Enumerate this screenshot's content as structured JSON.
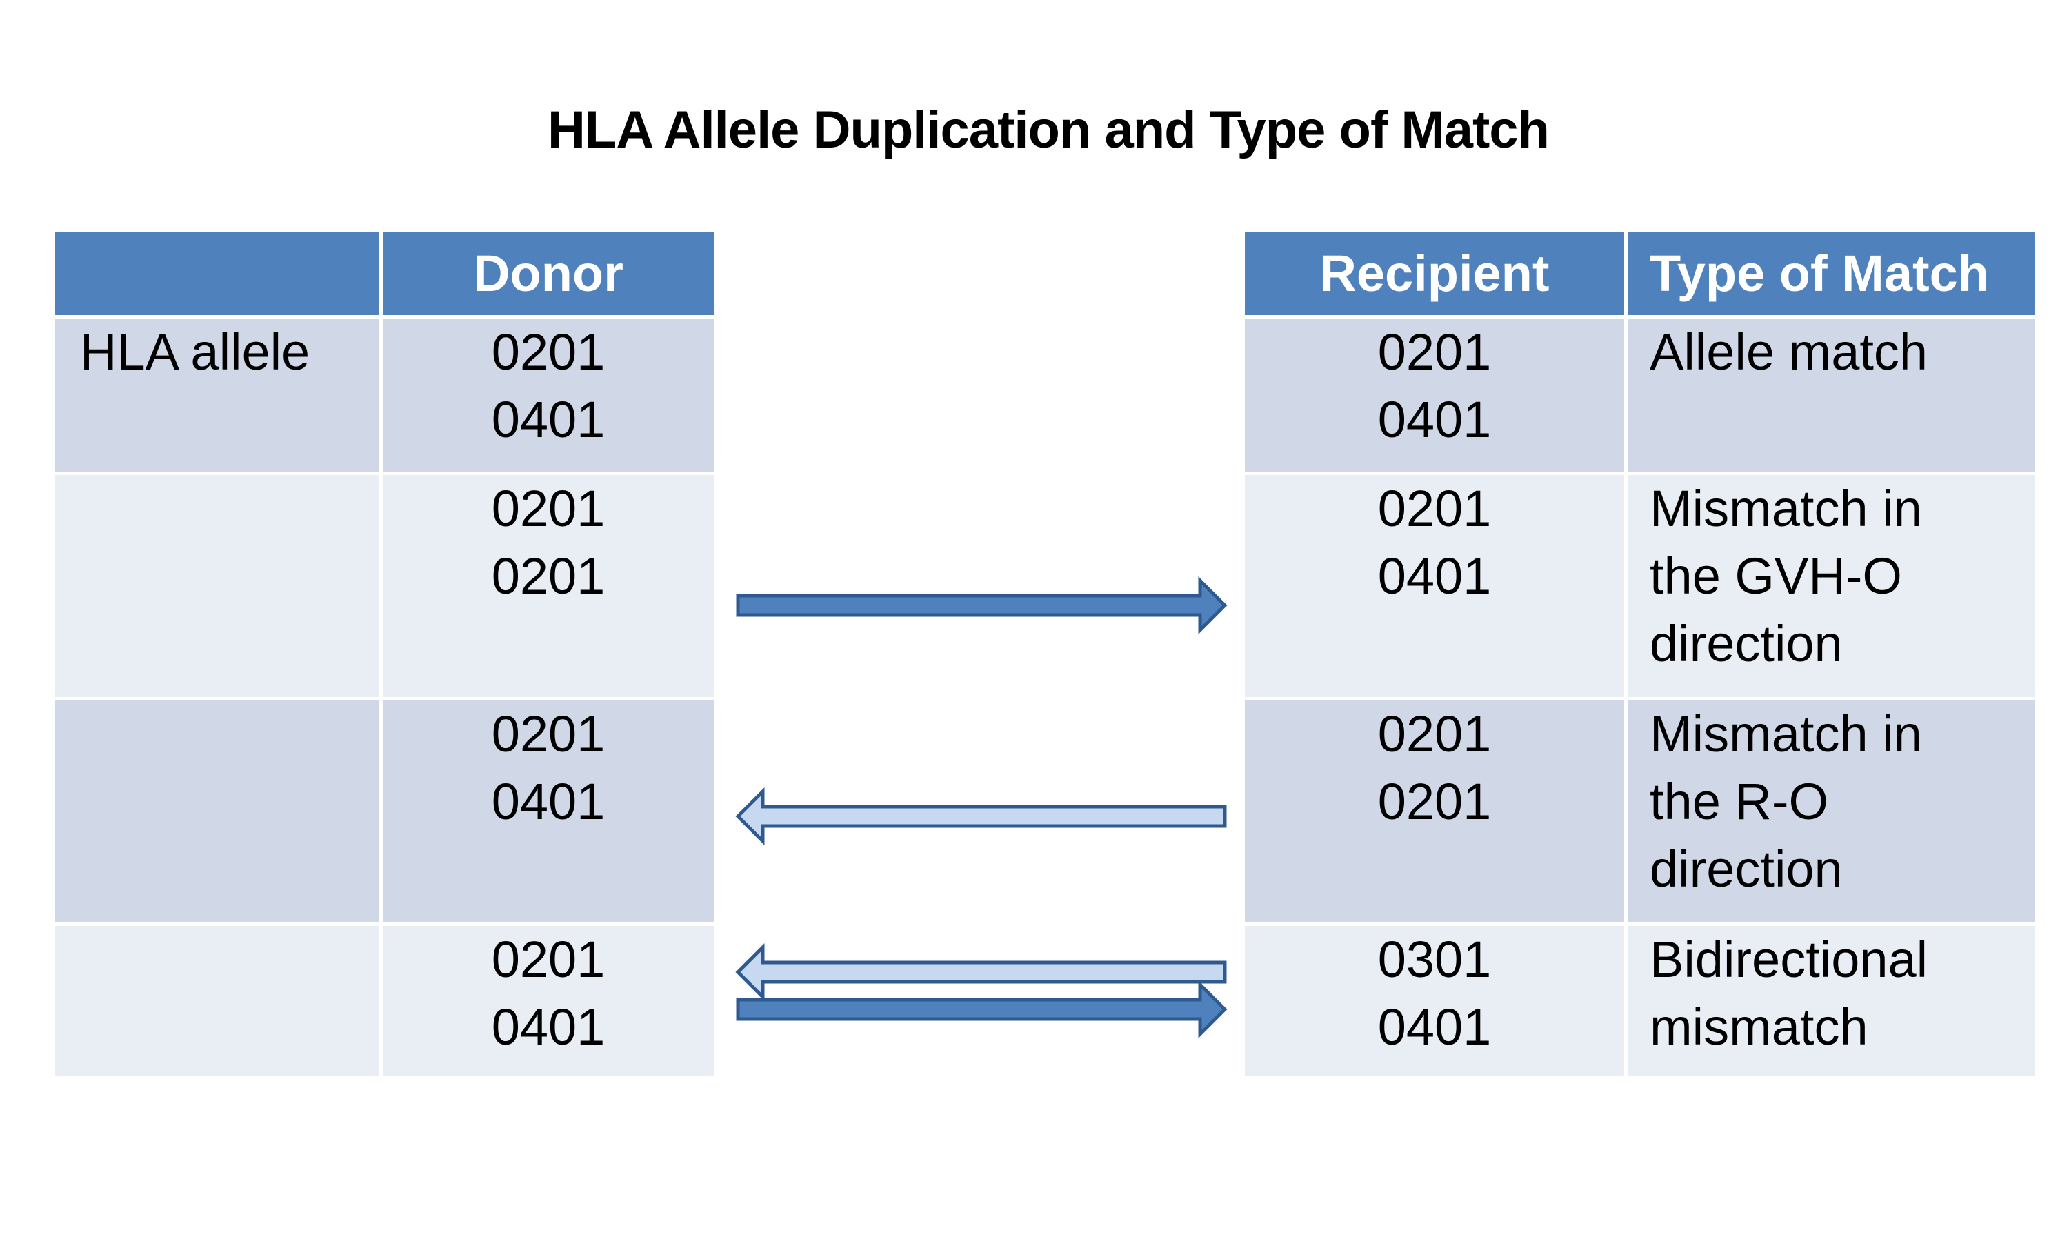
{
  "title": "HLA Allele Duplication and Type of Match",
  "left_table": {
    "headers": [
      "",
      "Donor"
    ],
    "rows": [
      {
        "label": "HLA allele",
        "donor": [
          "0201",
          "0401"
        ]
      },
      {
        "label": "",
        "donor": [
          "0201",
          "0201"
        ]
      },
      {
        "label": "",
        "donor": [
          "0201",
          "0401"
        ]
      },
      {
        "label": "",
        "donor": [
          "0201",
          "0401"
        ]
      }
    ]
  },
  "right_table": {
    "headers": [
      "Recipient",
      "Type of Match"
    ],
    "rows": [
      {
        "recipient": [
          "0201",
          "0401"
        ],
        "match": [
          "Allele match"
        ]
      },
      {
        "recipient": [
          "0201",
          "0401"
        ],
        "match": [
          "Mismatch in",
          "the GVH-O",
          "direction"
        ]
      },
      {
        "recipient": [
          "0201",
          "0201"
        ],
        "match": [
          "Mismatch in",
          "the R-O",
          "direction"
        ]
      },
      {
        "recipient": [
          "0301",
          "0401"
        ],
        "match": [
          "Bidirectional",
          "mismatch"
        ]
      }
    ]
  },
  "colors": {
    "header_bg": "#4f81bd",
    "row_dark": "#d0d8e8",
    "row_light": "#e9edf4",
    "arrow_dark": "#4f81bd",
    "arrow_light": "#c6d9f1",
    "arrow_stroke": "#2f5a8f"
  }
}
